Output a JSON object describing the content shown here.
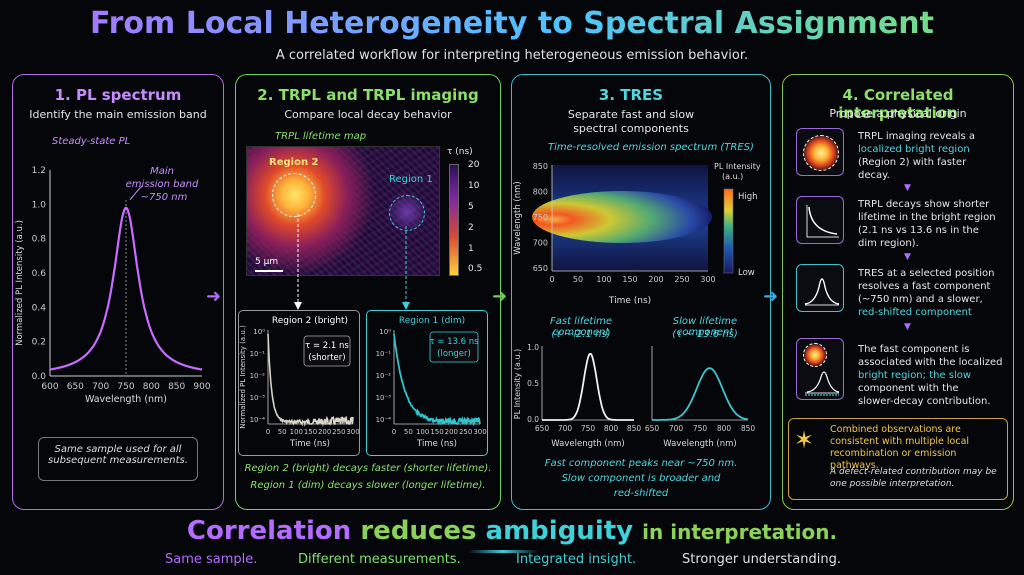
{
  "title": "From Local Heterogeneity to Spectral Assignment",
  "subtitle": "A correlated workflow for interpreting heterogeneous emission behavior.",
  "panel1": {
    "heading": "1. PL spectrum",
    "desc": "Identify the main emission band",
    "caption": "Steady-state PL",
    "annotation_l1": "Main",
    "annotation_l2": "emission band",
    "annotation_l3": "~750 nm",
    "note": "Same sample used for all subsequent measurements."
  },
  "panel2": {
    "heading": "2. TRPL and TRPL imaging",
    "desc": "Compare local decay behavior",
    "map_caption": "TRPL lifetime map",
    "region2_label": "Region 2",
    "region1_label": "Region 1",
    "scalebar": "5 μm",
    "tau_label": "τ (ns)",
    "tau_ticks": [
      "20",
      "10",
      "5",
      "2",
      "1",
      "0.5"
    ],
    "bright_title": "Region 2 (bright)",
    "bright_tau": "τ = 2.1 ns",
    "bright_tau_note": "(shorter)",
    "dim_title": "Region 1 (dim)",
    "dim_tau": "τ = 13.6 ns",
    "dim_tau_note": "(longer)",
    "decay_ylabel": "Normalized PL Intensity (a.u.)",
    "decay_xlabel": "Time (ns)",
    "caption1": "Region 2 (bright) decays faster (shorter lifetime).",
    "caption2": "Region 1 (dim) decays slower (longer lifetime)."
  },
  "panel3": {
    "heading": "3. TRES",
    "desc_l1": "Separate fast and slow",
    "desc_l2": "spectral components",
    "map_caption": "Time-resolved emission spectrum (TRES)",
    "ylabel": "Wavelength (nm)",
    "xlabel": "Time (ns)",
    "cbar_title_l1": "PL Intensity",
    "cbar_title_l2": "(a.u.)",
    "cbar_high": "High",
    "cbar_low": "Low",
    "fast_label": "Fast lifetime component",
    "fast_tau": "(τ ~ 2.1 ns)",
    "slow_label": "Slow lifetime component",
    "slow_tau": "(τ ~ 13.6 ns)",
    "comp_ylabel": "PL Intensity (a.u.)",
    "comp_xlabel": "Wavelength (nm)",
    "caption1": "Fast component peaks near ~750 nm.",
    "caption2": "Slow component is broader and",
    "caption3": "red-shifted"
  },
  "panel4": {
    "heading": "4. Correlated interpretation",
    "desc": "Propose a physical origin",
    "item1_l1": "TRPL imaging reveals a",
    "item1_l2": "localized bright region",
    "item1_l3": "(Region 2) with faster",
    "item1_l4": "decay.",
    "item2_l1": "TRPL decays show shorter",
    "item2_l2": "lifetime in the bright region",
    "item2_l3": "(2.1 ns vs 13.6 ns in the",
    "item2_l4": "dim region).",
    "item3_l1": "TRES at a selected position",
    "item3_l2": "resolves a fast component",
    "item3_l3": "(~750 nm) and a slower,",
    "item3_l4": "red-shifted component",
    "item4_l1": "The fast component is",
    "item4_l2": "associated with the localized",
    "item4_l3": "bright region; the slow",
    "item4_l4": "component with the",
    "item4_l5": "slower-decay contribution.",
    "conclusion_l1": "Combined observations are",
    "conclusion_l2": "consistent with multiple local",
    "conclusion_l3": "recombination or emission pathways.",
    "conclusion_l4": "A defect-related contribution may be",
    "conclusion_l5": "one possible interpretation."
  },
  "bottom": {
    "w1": "Correlation",
    "w2": "reduces",
    "w3": "ambiguity",
    "w4": "in interpretation.",
    "t1": "Same sample.",
    "t2": "Different measurements.",
    "t3": "Integrated insight.",
    "t4": "Stronger understanding."
  },
  "colors": {
    "purple": "#b46bff",
    "green": "#7be36a",
    "cyan": "#3fd0d8",
    "yellow": "#f2c744"
  },
  "chart_data": [
    {
      "type": "line",
      "xlabel": "Wavelength (nm)",
      "ylabel": "Normalized PL Intensity (a.u.)",
      "xlim": [
        600,
        900
      ],
      "ylim": [
        0,
        1.2
      ],
      "xticks": [
        "600",
        "650",
        "700",
        "750",
        "800",
        "850",
        "900"
      ],
      "yticks": [
        "0.0",
        "0.2",
        "0.4",
        "0.6",
        "0.8",
        "1.0",
        "1.2"
      ],
      "peak": 750,
      "fwhm": 60,
      "x": [
        600,
        650,
        700,
        725,
        750,
        775,
        800,
        850,
        900
      ],
      "values": [
        0.03,
        0.08,
        0.3,
        0.6,
        0.98,
        0.6,
        0.3,
        0.08,
        0.03
      ]
    },
    {
      "type": "line",
      "title": "Region 2 (bright)",
      "xlabel": "Time (ns)",
      "xlim": [
        0,
        300
      ],
      "xticks": [
        "0",
        "50",
        "100",
        "150",
        "200",
        "250",
        "300"
      ],
      "yticks": [
        "10⁰",
        "10⁻¹",
        "10⁻²",
        "10⁻³",
        "10⁻⁴"
      ],
      "tau_ns": 2.1
    },
    {
      "type": "line",
      "title": "Region 1 (dim)",
      "xlabel": "Time (ns)",
      "xlim": [
        0,
        300
      ],
      "xticks": [
        "0",
        "50",
        "100",
        "150",
        "200",
        "250",
        "300"
      ],
      "yticks": [
        "10⁰",
        "10⁻¹",
        "10⁻²",
        "10⁻³",
        "10⁻⁴"
      ],
      "tau_ns": 13.6
    },
    {
      "type": "heatmap",
      "title": "Time-resolved emission spectrum (TRES)",
      "xlabel": "Time (ns)",
      "ylabel": "Wavelength (nm)",
      "xlim": [
        0,
        300
      ],
      "ylim": [
        650,
        850
      ],
      "xticks": [
        "0",
        "50",
        "100",
        "150",
        "200",
        "250",
        "300"
      ],
      "yticks": [
        "850",
        "800",
        "750",
        "700",
        "650"
      ]
    },
    {
      "type": "line",
      "title": "Fast lifetime component",
      "xlabel": "Wavelength (nm)",
      "ylabel": "PL Intensity (a.u.)",
      "xlim": [
        650,
        850
      ],
      "ylim": [
        0,
        1.0
      ],
      "xticks": [
        "650",
        "700",
        "750",
        "800",
        "850"
      ],
      "yticks": [
        "0.0",
        "0.5",
        "1.0"
      ],
      "peak": 755,
      "peak_value": 0.92
    },
    {
      "type": "line",
      "title": "Slow lifetime component",
      "xlabel": "Wavelength (nm)",
      "xlim": [
        650,
        850
      ],
      "xticks": [
        "650",
        "700",
        "750",
        "800",
        "850"
      ],
      "peak": 770,
      "peak_value": 0.72
    }
  ]
}
